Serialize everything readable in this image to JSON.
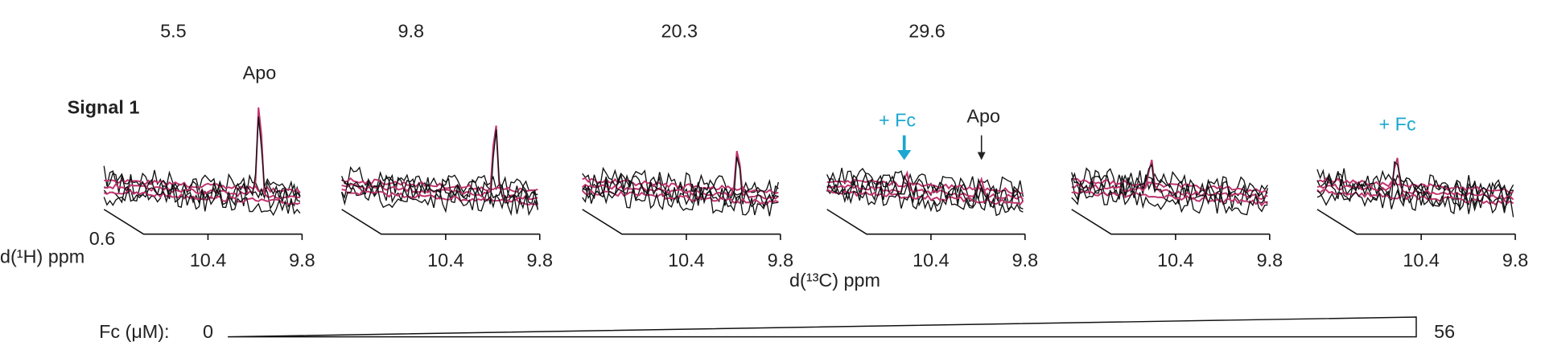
{
  "top_labels": [
    "5.5",
    "9.8",
    "20.3",
    "29.6"
  ],
  "signal_label": "Signal 1",
  "annotations": [
    {
      "text": "Apo",
      "color": "#222222"
    },
    {
      "text": "+ Fc",
      "color": "#1aa7d0"
    },
    {
      "text": "Apo",
      "color": "#222222"
    },
    {
      "text": "+ Fc",
      "color": "#1aa7d0"
    }
  ],
  "panels": [
    {
      "ticks": [
        "10.4",
        "9.8"
      ]
    },
    {
      "ticks": [
        "10.4",
        "9.8"
      ]
    },
    {
      "ticks": [
        "10.4",
        "9.8"
      ]
    },
    {
      "ticks": [
        "10.4",
        "9.8"
      ]
    },
    {
      "ticks": [
        "10.4",
        "9.8"
      ]
    },
    {
      "ticks": [
        "10.4",
        "9.8"
      ]
    }
  ],
  "y_axis": {
    "tick": "0.6",
    "label": "d(¹H) ppm"
  },
  "x_axis_label": "d(¹³C) ppm",
  "gradient": {
    "label": "Fc (μM):",
    "start": "0",
    "end": "56"
  }
}
